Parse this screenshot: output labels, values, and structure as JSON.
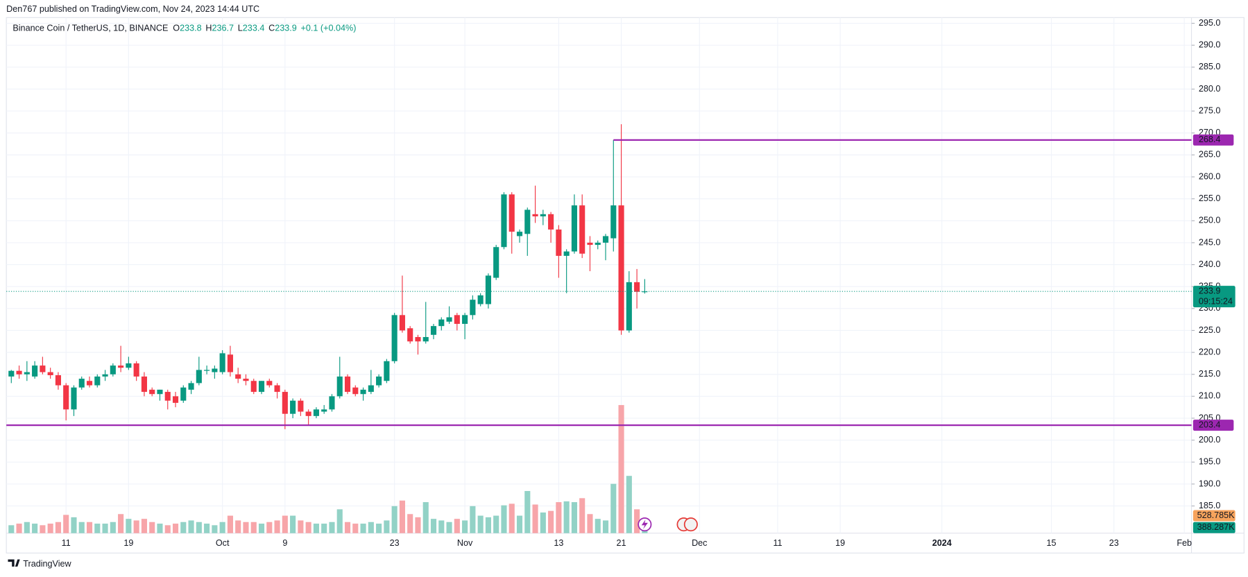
{
  "header": {
    "published": "Den767 published on TradingView.com, Nov 24, 2023 14:44 UTC",
    "symbol": "Binance Coin / TetherUS, 1D, BINANCE",
    "ohlc_letters": [
      "O",
      "H",
      "L",
      "C"
    ],
    "change": "+0.1 (+0.04%)",
    "countdown": "09:15:24"
  },
  "footer": {
    "brand": "TradingView"
  },
  "chart_data": {
    "type": "candlestick",
    "x": [
      "2023-09-04",
      "2023-09-05",
      "2023-09-06",
      "2023-09-07",
      "2023-09-08",
      "2023-09-09",
      "2023-09-10",
      "2023-09-11",
      "2023-09-12",
      "2023-09-13",
      "2023-09-14",
      "2023-09-15",
      "2023-09-16",
      "2023-09-17",
      "2023-09-18",
      "2023-09-19",
      "2023-09-20",
      "2023-09-21",
      "2023-09-22",
      "2023-09-23",
      "2023-09-24",
      "2023-09-25",
      "2023-09-26",
      "2023-09-27",
      "2023-09-28",
      "2023-09-29",
      "2023-09-30",
      "2023-10-01",
      "2023-10-02",
      "2023-10-03",
      "2023-10-04",
      "2023-10-05",
      "2023-10-06",
      "2023-10-07",
      "2023-10-08",
      "2023-10-09",
      "2023-10-10",
      "2023-10-11",
      "2023-10-12",
      "2023-10-13",
      "2023-10-14",
      "2023-10-15",
      "2023-10-16",
      "2023-10-17",
      "2023-10-18",
      "2023-10-19",
      "2023-10-20",
      "2023-10-21",
      "2023-10-22",
      "2023-10-23",
      "2023-10-24",
      "2023-10-25",
      "2023-10-26",
      "2023-10-27",
      "2023-10-28",
      "2023-10-29",
      "2023-10-30",
      "2023-10-31",
      "2023-11-01",
      "2023-11-02",
      "2023-11-03",
      "2023-11-04",
      "2023-11-05",
      "2023-11-06",
      "2023-11-07",
      "2023-11-08",
      "2023-11-09",
      "2023-11-10",
      "2023-11-11",
      "2023-11-12",
      "2023-11-13",
      "2023-11-14",
      "2023-11-15",
      "2023-11-16",
      "2023-11-17",
      "2023-11-18",
      "2023-11-19",
      "2023-11-20",
      "2023-11-21",
      "2023-11-22",
      "2023-11-23",
      "2023-11-24"
    ],
    "open": [
      214.5,
      215.8,
      215,
      214.5,
      217,
      215.5,
      214.8,
      212.5,
      207,
      212,
      213.5,
      212.5,
      214.5,
      215,
      217,
      216.5,
      217.5,
      214.5,
      211.5,
      210.5,
      211,
      210,
      209,
      211.5,
      213,
      215.8,
      215.5,
      215.5,
      219.5,
      215,
      214,
      213.5,
      211,
      213.5,
      212.5,
      211,
      206,
      209,
      206.5,
      205.5,
      206.5,
      207,
      210,
      214.5,
      212,
      210.5,
      211,
      212.5,
      213.5,
      218,
      228.5,
      225.5,
      223.5,
      222.5,
      224,
      226,
      227,
      228.5,
      226.5,
      228.5,
      231,
      231,
      237,
      244,
      256,
      246.5,
      247,
      251.5,
      251,
      251.5,
      248,
      242,
      243,
      253.5,
      245,
      244.5,
      245,
      246,
      253.5,
      225,
      236,
      233.8
    ],
    "high": [
      216,
      217,
      218,
      218,
      219,
      216.5,
      215.5,
      213,
      212.5,
      214.5,
      214.5,
      215,
      216,
      217.5,
      221.5,
      219,
      218,
      215.5,
      212,
      211.5,
      211.5,
      211,
      212.5,
      213.5,
      219,
      217,
      217,
      220.5,
      221.5,
      216.5,
      215,
      214,
      213.5,
      214,
      213,
      211.5,
      209.5,
      209.5,
      207,
      207.5,
      208,
      210.5,
      219,
      215,
      212.5,
      212,
      216,
      215,
      218.5,
      229,
      237.5,
      226,
      224,
      231.5,
      226.5,
      228,
      230.5,
      229,
      229,
      233,
      233.5,
      238,
      244.5,
      256.5,
      256.5,
      248,
      253,
      258,
      252.5,
      252,
      249,
      243.5,
      256,
      256,
      246.5,
      245.5,
      247,
      268.4,
      272,
      238.5,
      239,
      236.7
    ],
    "low": [
      213,
      214,
      213.5,
      214,
      215,
      214,
      211.5,
      204.5,
      205.5,
      211.5,
      212,
      212,
      213.5,
      214.5,
      215.5,
      216,
      213.5,
      210,
      210,
      209,
      207,
      207.5,
      208.5,
      210.5,
      212.5,
      215,
      214,
      215,
      214.5,
      213,
      212.5,
      210.5,
      210.5,
      212,
      209.5,
      202.5,
      205,
      205.5,
      203.5,
      205,
      206,
      206.5,
      209.5,
      210.5,
      210,
      209,
      210.5,
      212,
      213,
      217.5,
      224.5,
      222,
      219.5,
      222,
      223,
      225,
      226.5,
      225,
      223,
      227.5,
      230.5,
      230,
      236.5,
      243.5,
      242.5,
      245,
      242,
      249.5,
      249,
      245,
      237,
      233.5,
      242.5,
      241.5,
      238.5,
      243.5,
      241,
      243,
      224,
      224.5,
      230,
      233.4
    ],
    "close": [
      215.8,
      215,
      215.5,
      217,
      215.5,
      214.8,
      212.5,
      207,
      212,
      214,
      212.5,
      214.5,
      215,
      217,
      216.5,
      217.5,
      214.5,
      211,
      210.5,
      211.5,
      209,
      208.5,
      212,
      213,
      216,
      216,
      216.3,
      219.8,
      215.5,
      214,
      213.5,
      211,
      213.5,
      212.5,
      211,
      206,
      209,
      206.5,
      205.5,
      207,
      207,
      210,
      214.5,
      211,
      210.5,
      211.5,
      212.5,
      214.5,
      218,
      228.5,
      225,
      222.5,
      222.5,
      223.5,
      226,
      227.5,
      228,
      226.5,
      228.5,
      232,
      233,
      237.5,
      244,
      256,
      247.5,
      247.5,
      252.5,
      251,
      251.5,
      248,
      242,
      243,
      253.5,
      242.5,
      244.5,
      245,
      246.5,
      253.5,
      225,
      236,
      233.8,
      233.9
    ],
    "volume": [
      240000,
      288000,
      336000,
      288000,
      240000,
      288000,
      336000,
      552000,
      480000,
      336000,
      336000,
      288000,
      288000,
      336000,
      576000,
      432000,
      384000,
      432000,
      336000,
      288000,
      240000,
      288000,
      336000,
      384000,
      336000,
      288000,
      240000,
      336000,
      528000,
      384000,
      336000,
      336000,
      288000,
      336000,
      384000,
      528000,
      528000,
      384000,
      336000,
      288000,
      288000,
      336000,
      720000,
      336000,
      288000,
      288000,
      336000,
      288000,
      384000,
      816000,
      984000,
      576000,
      480000,
      936000,
      432000,
      384000,
      336000,
      432000,
      384000,
      816000,
      528000,
      480000,
      528000,
      840000,
      888000,
      528000,
      1272000,
      864000,
      624000,
      672000,
      936000,
      960000,
      936000,
      1056000,
      576000,
      432000,
      384000,
      1488000,
      3864000,
      1728000,
      720000,
      388287
    ],
    "up_color": "#089981",
    "down_color": "#f23645",
    "volume_up_color": "#92d2c6",
    "volume_down_color": "#f7a5a9",
    "xlim": [
      "2023-09-04",
      "2024-02-02"
    ],
    "xticks": [
      {
        "value": "2023-09-11",
        "label": "11"
      },
      {
        "value": "2023-09-19",
        "label": "19"
      },
      {
        "value": "2023-10-01",
        "label": "Oct"
      },
      {
        "value": "2023-10-09",
        "label": "9"
      },
      {
        "value": "2023-10-23",
        "label": "23"
      },
      {
        "value": "2023-11-01",
        "label": "Nov"
      },
      {
        "value": "2023-11-13",
        "label": "13"
      },
      {
        "value": "2023-11-21",
        "label": "21"
      },
      {
        "value": "2023-12-01",
        "label": "Dec"
      },
      {
        "value": "2023-12-11",
        "label": "11"
      },
      {
        "value": "2023-12-19",
        "label": "19"
      },
      {
        "value": "2024-01-01",
        "label": "2024"
      },
      {
        "value": "2024-01-15",
        "label": "15"
      },
      {
        "value": "2024-01-23",
        "label": "23"
      },
      {
        "value": "2024-02-01",
        "label": "Feb"
      }
    ],
    "ylim": [
      178.8,
      296.3
    ],
    "yticks": [
      {
        "value": 185,
        "label": "185.0"
      },
      {
        "value": 190,
        "label": "190.0"
      },
      {
        "value": 195,
        "label": "195.0"
      },
      {
        "value": 200,
        "label": "200.0"
      },
      {
        "value": 205,
        "label": "205.0"
      },
      {
        "value": 210,
        "label": "210.0"
      },
      {
        "value": 215,
        "label": "215.0"
      },
      {
        "value": 220,
        "label": "220.0"
      },
      {
        "value": 225,
        "label": "225.0"
      },
      {
        "value": 230,
        "label": "230.0"
      },
      {
        "value": 235,
        "label": "235.0"
      },
      {
        "value": 240,
        "label": "240.0"
      },
      {
        "value": 245,
        "label": "245.0"
      },
      {
        "value": 250,
        "label": "250.0"
      },
      {
        "value": 255,
        "label": "255.0"
      },
      {
        "value": 260,
        "label": "260.0"
      },
      {
        "value": 265,
        "label": "265.0"
      },
      {
        "value": 270,
        "label": "270.0"
      },
      {
        "value": 275,
        "label": "275.0"
      },
      {
        "value": 280,
        "label": "280.0"
      },
      {
        "value": 285,
        "label": "285.0"
      },
      {
        "value": 290,
        "label": "290.0"
      },
      {
        "value": 295,
        "label": "295.0"
      }
    ],
    "grid": true,
    "hlines": [
      {
        "value": 268.4,
        "color": "#9c27b0",
        "start": "2023-11-20"
      },
      {
        "value": 203.4,
        "color": "#9c27b0"
      }
    ],
    "volume_ma": {
      "value": 528785,
      "label": "528.785K",
      "color": "#f7a35c"
    },
    "last_volume": {
      "value": 388287,
      "label": "388.287K"
    }
  }
}
